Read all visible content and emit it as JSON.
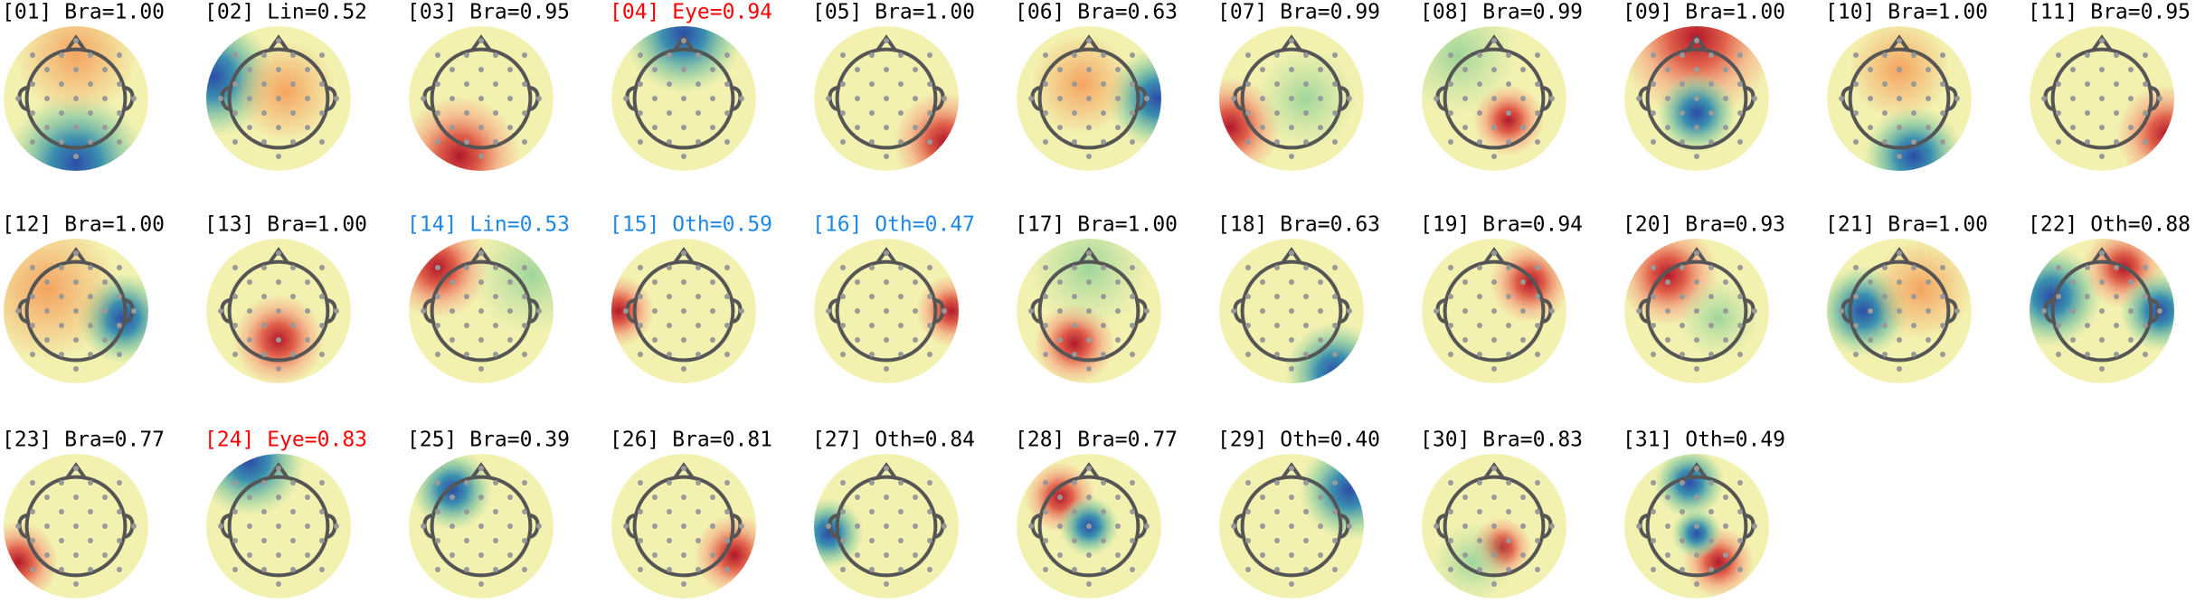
{
  "components": [
    {
      "label": "[01] Bra=1.00",
      "color": "#000000"
    },
    {
      "label": "[02] Lin=0.52",
      "color": "#000000"
    },
    {
      "label": "[03] Bra=0.95",
      "color": "#000000"
    },
    {
      "label": "[04] Eye=0.94",
      "color": "#ff0000"
    },
    {
      "label": "[05] Bra=1.00",
      "color": "#000000"
    },
    {
      "label": "[06] Bra=0.63",
      "color": "#000000"
    },
    {
      "label": "[07] Bra=0.99",
      "color": "#000000"
    },
    {
      "label": "[08] Bra=0.99",
      "color": "#000000"
    },
    {
      "label": "[09] Bra=1.00",
      "color": "#000000"
    },
    {
      "label": "[10] Bra=1.00",
      "color": "#000000"
    },
    {
      "label": "[11] Bra=0.95",
      "color": "#000000"
    },
    {
      "label": "[12] Bra=1.00",
      "color": "#000000"
    },
    {
      "label": "[13] Bra=1.00",
      "color": "#000000"
    },
    {
      "label": "[14] Lin=0.53",
      "color": "#1e88e5"
    },
    {
      "label": "[15] Oth=0.59",
      "color": "#1e88e5"
    },
    {
      "label": "[16] Oth=0.47",
      "color": "#1e88e5"
    },
    {
      "label": "[17] Bra=1.00",
      "color": "#000000"
    },
    {
      "label": "[18] Bra=0.63",
      "color": "#000000"
    },
    {
      "label": "[19] Bra=0.94",
      "color": "#000000"
    },
    {
      "label": "[20] Bra=0.93",
      "color": "#000000"
    },
    {
      "label": "[21] Bra=1.00",
      "color": "#000000"
    },
    {
      "label": "[22] Oth=0.88",
      "color": "#000000"
    },
    {
      "label": "[23] Bra=0.77",
      "color": "#000000"
    },
    {
      "label": "[24] Eye=0.83",
      "color": "#ff0000"
    },
    {
      "label": "[25] Bra=0.39",
      "color": "#000000"
    },
    {
      "label": "[26] Bra=0.81",
      "color": "#000000"
    },
    {
      "label": "[27] Oth=0.84",
      "color": "#000000"
    },
    {
      "label": "[28] Bra=0.77",
      "color": "#000000"
    },
    {
      "label": "[29] Oth=0.40",
      "color": "#000000"
    },
    {
      "label": "[30] Bra=0.83",
      "color": "#000000"
    },
    {
      "label": "[31] Oth=0.49",
      "color": "#000000"
    }
  ]
}
